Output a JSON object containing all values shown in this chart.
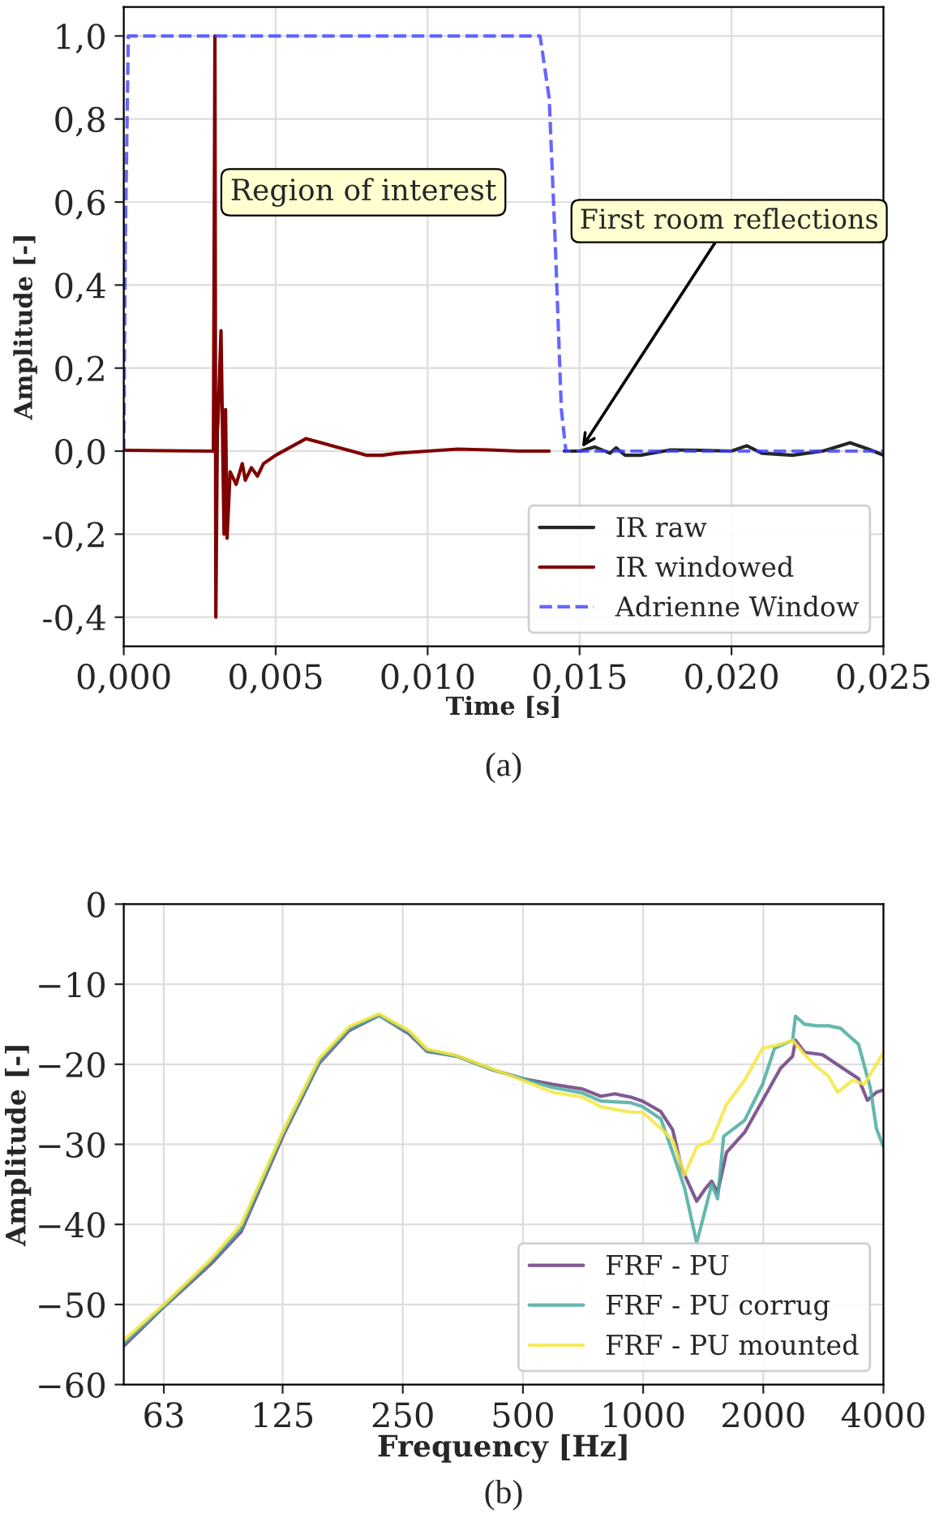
{
  "chart_data": [
    {
      "type": "line",
      "xlabel": "Time [s]",
      "ylabel": "Amplitude [-]",
      "xlim": [
        0,
        0.025
      ],
      "ylim": [
        -0.47,
        1.07
      ],
      "xticks": [
        {
          "value": 0,
          "label": "0,000"
        },
        {
          "value": 0.005,
          "label": "0,005"
        },
        {
          "value": 0.01,
          "label": "0,010"
        },
        {
          "value": 0.015,
          "label": "0,015"
        },
        {
          "value": 0.02,
          "label": "0,020"
        },
        {
          "value": 0.025,
          "label": "0,025"
        }
      ],
      "yticks": [
        {
          "value": -0.4,
          "label": "-0,4"
        },
        {
          "value": -0.2,
          "label": "-0,2"
        },
        {
          "value": 0,
          "label": "0,0"
        },
        {
          "value": 0.2,
          "label": "0,2"
        },
        {
          "value": 0.4,
          "label": "0,4"
        },
        {
          "value": 0.6,
          "label": "0,6"
        },
        {
          "value": 0.8,
          "label": "0,8"
        },
        {
          "value": 1.0,
          "label": "1,0"
        }
      ],
      "grid": true,
      "legend": "bottom right",
      "series": [
        {
          "name": "IR raw",
          "color": "#000000",
          "line_style": "solid",
          "x": [
            0.0145,
            0.015,
            0.0155,
            0.016,
            0.0162,
            0.0165,
            0.017,
            0.018,
            0.019,
            0.02,
            0.0205,
            0.021,
            0.022,
            0.023,
            0.0239,
            0.0245,
            0.025
          ],
          "values": [
            0,
            0,
            0.01,
            -0.005,
            0.008,
            -0.01,
            -0.01,
            0.003,
            0.002,
            0,
            0.013,
            -0.005,
            -0.01,
            0,
            0.02,
            0.005,
            -0.01
          ]
        },
        {
          "name": "IR windowed",
          "color": "#800000",
          "line_style": "solid",
          "x": [
            0,
            0.0028,
            0.00295,
            0.003,
            0.00303,
            0.00308,
            0.0031,
            0.0032,
            0.0033,
            0.00335,
            0.0034,
            0.0035,
            0.0037,
            0.0039,
            0.004,
            0.0042,
            0.0044,
            0.0046,
            0.0048,
            0.005,
            0.0055,
            0.006,
            0.0065,
            0.007,
            0.0075,
            0.008,
            0.0085,
            0.009,
            0.01,
            0.011,
            0.012,
            0.013,
            0.014
          ],
          "values": [
            0.002,
            0,
            0,
            1.0,
            -0.4,
            0.05,
            0.07,
            0.29,
            -0.2,
            0.1,
            -0.21,
            -0.05,
            -0.08,
            -0.03,
            -0.07,
            -0.04,
            -0.06,
            -0.03,
            -0.02,
            -0.01,
            0.01,
            0.03,
            0.02,
            0.01,
            0,
            -0.01,
            -0.01,
            -0.005,
            0,
            0.005,
            0.003,
            0,
            0
          ]
        },
        {
          "name": "Adrienne Window",
          "color": "#4040ff",
          "line_style": "dashed",
          "x": [
            0,
            5e-05,
            0.00015,
            0.0137,
            0.014,
            0.0142,
            0.0144,
            0.01455,
            0.025
          ],
          "values": [
            0,
            0.5,
            1.0,
            1.0,
            0.85,
            0.5,
            0.1,
            0,
            0
          ]
        }
      ],
      "annotations": [
        "Region of interest",
        {
          "text": "First room reflections",
          "x": 0.015,
          "y": 0.0
        },
        "(a)"
      ]
    },
    {
      "type": "line",
      "xlabel": "Frequency [Hz]",
      "ylabel": "Amplitude [-]",
      "log": "x",
      "xlim": [
        50,
        4000
      ],
      "ylim": [
        -60,
        0
      ],
      "xticks": [
        63,
        125,
        250,
        500,
        1000,
        2000,
        4000
      ],
      "yticks": [
        {
          "value": -60,
          "label": "−60"
        },
        {
          "value": -50,
          "label": "−50"
        },
        {
          "value": -40,
          "label": "−40"
        },
        {
          "value": -30,
          "label": "−30"
        },
        {
          "value": -20,
          "label": "−20"
        },
        {
          "value": -10,
          "label": "−10"
        },
        0
      ],
      "grid": true,
      "legend": "bottom right",
      "series": [
        {
          "name": "FRF - PU",
          "color": "#6a3d80",
          "line_style": "solid",
          "x": [
            50.2,
            63,
            82.8,
            98.4,
            125.4,
            154.2,
            183.3,
            218,
            259.1,
            287.5,
            341.6,
            420.3,
            499.8,
            594,
            706,
            783,
            850,
            931,
            997,
            1107,
            1186,
            1249,
            1362,
            1434,
            1485,
            1537,
            1618,
            1796,
            1992,
            2209,
            2368,
            2409,
            2538,
            2814,
            3122,
            3464,
            3646,
            3840,
            4000
          ],
          "values": [
            -55.1,
            -50.3,
            -44.9,
            -40.9,
            -28.9,
            -19.9,
            -15.8,
            -13.9,
            -16.2,
            -18.4,
            -19.0,
            -20.7,
            -21.8,
            -22.5,
            -23.1,
            -24.0,
            -23.7,
            -24.1,
            -24.6,
            -25.9,
            -28.2,
            -33.0,
            -37.1,
            -35.5,
            -34.6,
            -36.0,
            -31.0,
            -28.5,
            -24.5,
            -20.5,
            -19.0,
            -17.0,
            -18.5,
            -18.8,
            -20.3,
            -21.8,
            -24.5,
            -23.5,
            -23.2
          ]
        },
        {
          "name": "FRF - PU corrug",
          "color": "#4aaca0",
          "line_style": "solid",
          "x": [
            50.2,
            63,
            82.8,
            98.4,
            125.4,
            154.2,
            183.3,
            218,
            259.1,
            287.5,
            341.6,
            420.3,
            499.8,
            594,
            706,
            783,
            931,
            997,
            1107,
            1186,
            1271,
            1362,
            1434,
            1485,
            1537,
            1591,
            1796,
            1992,
            2134,
            2368,
            2409,
            2538,
            2719,
            2913,
            3122,
            3464,
            3710,
            3840,
            4000
          ],
          "values": [
            -54.8,
            -50.2,
            -44.6,
            -40.5,
            -28.6,
            -19.7,
            -15.6,
            -13.9,
            -16.0,
            -18.3,
            -19.0,
            -20.7,
            -21.8,
            -22.9,
            -23.6,
            -24.6,
            -24.8,
            -25.3,
            -26.8,
            -31.0,
            -35.5,
            -42.3,
            -38.0,
            -35.0,
            -36.8,
            -29.0,
            -27.0,
            -22.5,
            -18.0,
            -17.0,
            -14.0,
            -15.0,
            -15.2,
            -15.2,
            -15.5,
            -17.5,
            -23.0,
            -28.0,
            -30.3
          ]
        },
        {
          "name": "FRF - PU mounted",
          "color": "#f5e642",
          "line_style": "solid",
          "x": [
            50.2,
            63,
            82.8,
            98.4,
            125.4,
            154.2,
            183.3,
            218,
            259.1,
            287.5,
            341.6,
            420.3,
            499.8,
            594,
            706,
            783,
            931,
            997,
            1107,
            1186,
            1271,
            1362,
            1485,
            1618,
            1796,
            1992,
            2209,
            2368,
            2538,
            2719,
            2913,
            3069,
            3346,
            3584,
            3840,
            4000
          ],
          "values": [
            -54.4,
            -50.0,
            -44.3,
            -40.0,
            -28.3,
            -19.3,
            -15.3,
            -13.7,
            -15.8,
            -18.1,
            -18.9,
            -20.6,
            -22.0,
            -23.5,
            -24.1,
            -25.3,
            -26.0,
            -26.0,
            -28.0,
            -29.5,
            -33.8,
            -30.3,
            -29.5,
            -25.0,
            -22.0,
            -18.0,
            -17.5,
            -17.0,
            -18.8,
            -20.3,
            -21.5,
            -23.5,
            -22.0,
            -22.5,
            -20.0,
            -18.5
          ]
        }
      ],
      "annotations": [
        "(b)"
      ]
    }
  ]
}
